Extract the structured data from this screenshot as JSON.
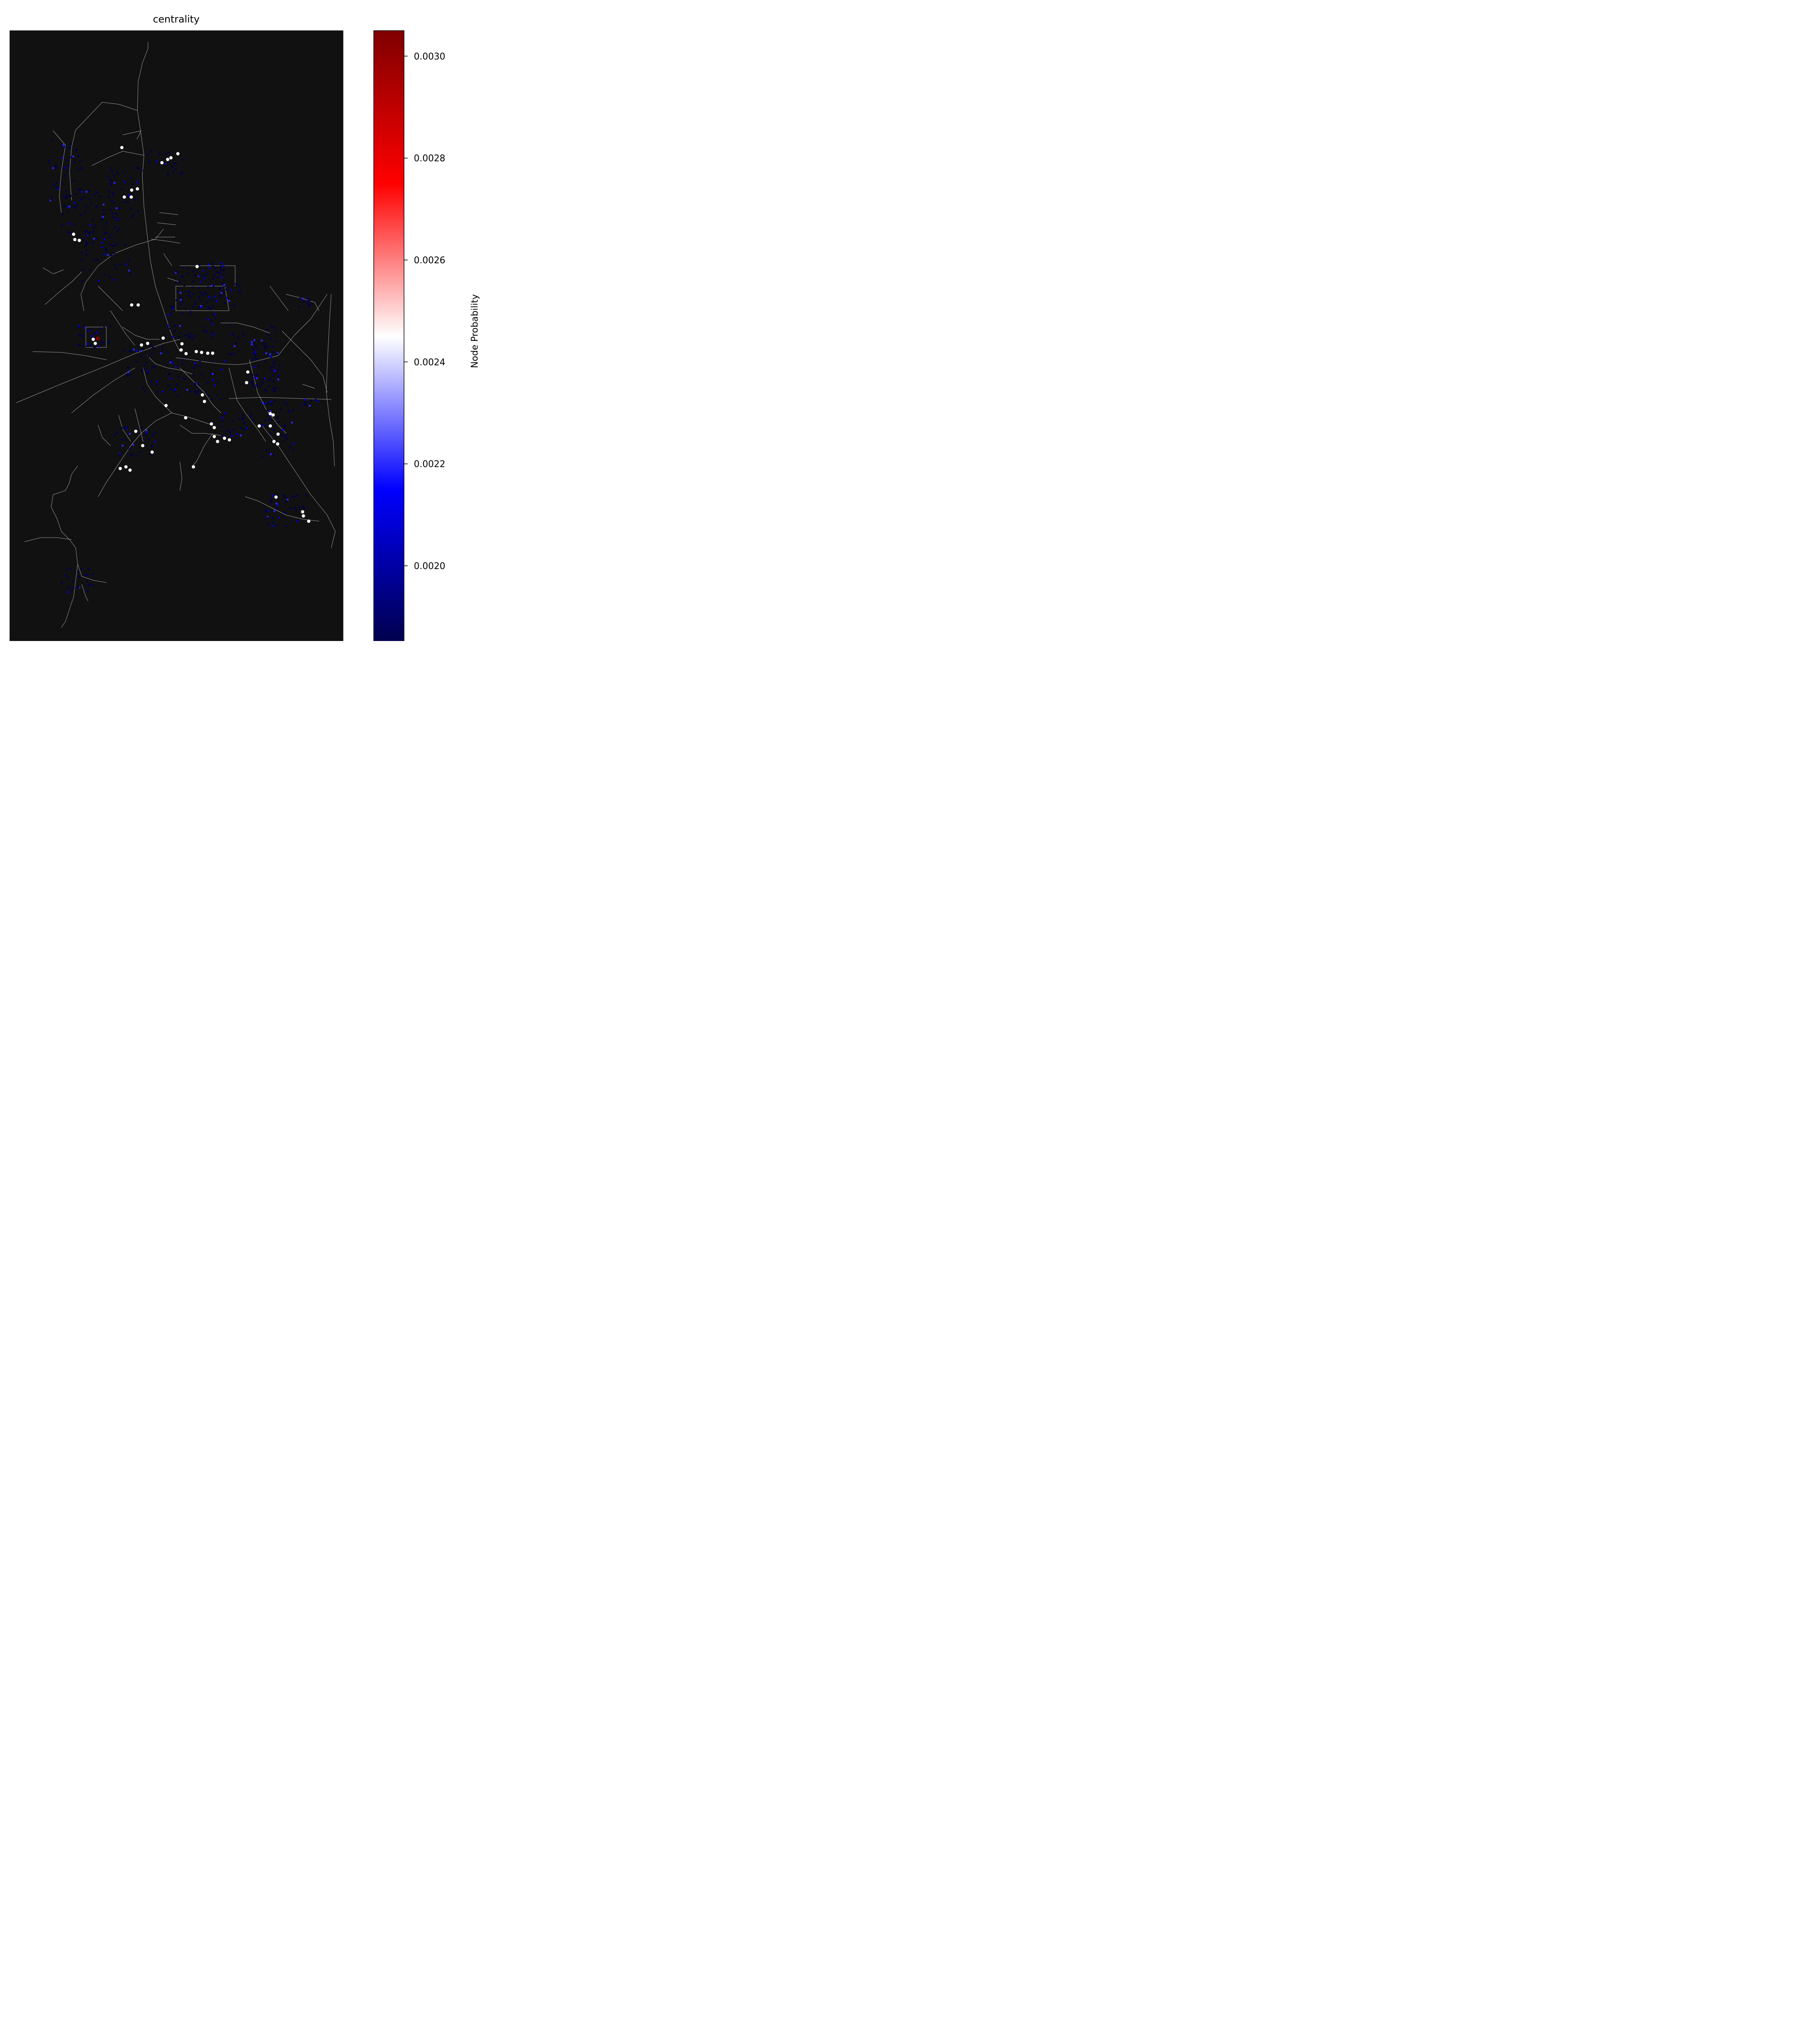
{
  "title": "centrality",
  "colorbar": {
    "label": "Node Probability",
    "ticks": [
      "0.0020",
      "0.0022",
      "0.0024",
      "0.0026",
      "0.0028",
      "0.0030"
    ],
    "tick_values": [
      0.002,
      0.0022,
      0.0024,
      0.0026,
      0.0028,
      0.003
    ],
    "vmin": 0.00185,
    "vmax": 0.00305,
    "colormap": "seismic",
    "colormap_stops": [
      "#00004c",
      "#0000ff",
      "#ffffff",
      "#ff0000",
      "#7f0000"
    ]
  },
  "colors": {
    "map_background": "#111111",
    "road": "#999999",
    "node_low": "#00004c",
    "node_mid": "#ffffff",
    "node_high": "#7f0000"
  },
  "map_data": {
    "type": "street-network-node-centrality",
    "node_probability_range": [
      0.00185,
      0.00305
    ]
  }
}
